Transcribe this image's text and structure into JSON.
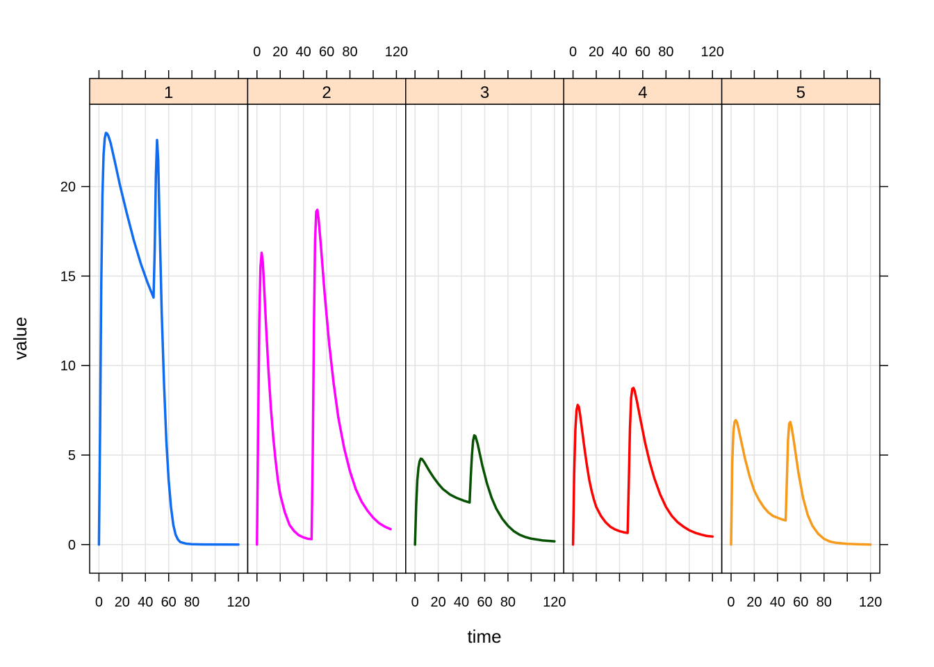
{
  "chart_data": {
    "type": "line",
    "layout": "lattice-panels",
    "xlabel": "time",
    "ylabel": "value",
    "xlim": [
      -8,
      128
    ],
    "ylim": [
      -1.6,
      24.6
    ],
    "x_ticks": [
      0,
      20,
      40,
      60,
      80,
      120
    ],
    "x_minor_ticks": [
      0,
      20,
      40,
      60,
      80,
      100,
      120
    ],
    "y_ticks": [
      0,
      5,
      10,
      15,
      20
    ],
    "grid": true,
    "strip_color": "#ffe0c4",
    "panels": [
      {
        "label": "1",
        "color": "#0f6cf0",
        "dose2_time": 48,
        "points": [
          [
            0,
            0
          ],
          [
            1,
            6.5
          ],
          [
            2,
            14.5
          ],
          [
            3,
            19.5
          ],
          [
            4,
            21.8
          ],
          [
            5,
            22.7
          ],
          [
            6,
            23.0
          ],
          [
            7,
            22.96
          ],
          [
            8,
            22.85
          ],
          [
            10,
            22.45
          ],
          [
            14,
            21.3
          ],
          [
            18,
            20.1
          ],
          [
            24,
            18.5
          ],
          [
            30,
            17.0
          ],
          [
            36,
            15.7
          ],
          [
            42,
            14.6
          ],
          [
            47,
            13.8
          ],
          [
            48,
            16.5
          ],
          [
            49,
            20.6
          ],
          [
            50,
            22.6
          ],
          [
            51,
            21.5
          ],
          [
            52,
            18.5
          ],
          [
            54,
            13.0
          ],
          [
            56,
            9.0
          ],
          [
            58,
            5.8
          ],
          [
            60,
            3.6
          ],
          [
            62,
            2.1
          ],
          [
            64,
            1.1
          ],
          [
            66,
            0.55
          ],
          [
            68,
            0.28
          ],
          [
            70,
            0.14
          ],
          [
            75,
            0.05
          ],
          [
            80,
            0.02
          ],
          [
            90,
            0.005
          ],
          [
            120,
            0.0
          ]
        ]
      },
      {
        "label": "2",
        "color": "#ff00ff",
        "dose2_time": 48,
        "points": [
          [
            0,
            0
          ],
          [
            1,
            6.5
          ],
          [
            2,
            12.5
          ],
          [
            3,
            15.5
          ],
          [
            4,
            16.3
          ],
          [
            5,
            15.8
          ],
          [
            6,
            14.6
          ],
          [
            8,
            12.0
          ],
          [
            10,
            9.6
          ],
          [
            12,
            7.6
          ],
          [
            14,
            6.0
          ],
          [
            16,
            4.7
          ],
          [
            18,
            3.6
          ],
          [
            20,
            2.8
          ],
          [
            24,
            1.8
          ],
          [
            28,
            1.1
          ],
          [
            32,
            0.75
          ],
          [
            36,
            0.52
          ],
          [
            40,
            0.4
          ],
          [
            44,
            0.32
          ],
          [
            47,
            0.3
          ],
          [
            48,
            5.0
          ],
          [
            49,
            12.0
          ],
          [
            50,
            17.0
          ],
          [
            51,
            18.6
          ],
          [
            52,
            18.7
          ],
          [
            53,
            18.2
          ],
          [
            55,
            16.7
          ],
          [
            58,
            14.2
          ],
          [
            62,
            11.3
          ],
          [
            66,
            9.0
          ],
          [
            70,
            7.1
          ],
          [
            75,
            5.4
          ],
          [
            80,
            4.1
          ],
          [
            85,
            3.1
          ],
          [
            90,
            2.4
          ],
          [
            95,
            1.9
          ],
          [
            100,
            1.5
          ],
          [
            105,
            1.2
          ],
          [
            110,
            1.0
          ],
          [
            115,
            0.86
          ]
        ]
      },
      {
        "label": "3",
        "color": "#075202",
        "dose2_time": 48,
        "points": [
          [
            0,
            0
          ],
          [
            1,
            2.2
          ],
          [
            2,
            3.6
          ],
          [
            3,
            4.3
          ],
          [
            4,
            4.65
          ],
          [
            5,
            4.8
          ],
          [
            6,
            4.78
          ],
          [
            8,
            4.6
          ],
          [
            12,
            4.15
          ],
          [
            16,
            3.75
          ],
          [
            20,
            3.4
          ],
          [
            24,
            3.1
          ],
          [
            30,
            2.8
          ],
          [
            36,
            2.6
          ],
          [
            42,
            2.45
          ],
          [
            47,
            2.35
          ],
          [
            48,
            3.8
          ],
          [
            49,
            5.0
          ],
          [
            50,
            5.8
          ],
          [
            51,
            6.1
          ],
          [
            52,
            6.05
          ],
          [
            54,
            5.6
          ],
          [
            56,
            5.0
          ],
          [
            58,
            4.4
          ],
          [
            62,
            3.4
          ],
          [
            66,
            2.6
          ],
          [
            70,
            2.0
          ],
          [
            75,
            1.45
          ],
          [
            80,
            1.05
          ],
          [
            85,
            0.75
          ],
          [
            90,
            0.55
          ],
          [
            95,
            0.42
          ],
          [
            100,
            0.33
          ],
          [
            110,
            0.23
          ],
          [
            120,
            0.18
          ]
        ]
      },
      {
        "label": "4",
        "color": "#ff0000",
        "dose2_time": 48,
        "points": [
          [
            0,
            0
          ],
          [
            1,
            4.0
          ],
          [
            2,
            6.4
          ],
          [
            3,
            7.5
          ],
          [
            4,
            7.8
          ],
          [
            5,
            7.7
          ],
          [
            6,
            7.3
          ],
          [
            8,
            6.3
          ],
          [
            10,
            5.3
          ],
          [
            12,
            4.4
          ],
          [
            14,
            3.6
          ],
          [
            16,
            3.0
          ],
          [
            18,
            2.5
          ],
          [
            20,
            2.1
          ],
          [
            24,
            1.6
          ],
          [
            28,
            1.25
          ],
          [
            32,
            1.0
          ],
          [
            36,
            0.85
          ],
          [
            40,
            0.75
          ],
          [
            44,
            0.68
          ],
          [
            47,
            0.65
          ],
          [
            48,
            3.5
          ],
          [
            49,
            6.5
          ],
          [
            50,
            8.2
          ],
          [
            51,
            8.7
          ],
          [
            52,
            8.75
          ],
          [
            53,
            8.6
          ],
          [
            55,
            8.0
          ],
          [
            58,
            7.0
          ],
          [
            62,
            5.7
          ],
          [
            66,
            4.6
          ],
          [
            70,
            3.7
          ],
          [
            75,
            2.8
          ],
          [
            80,
            2.1
          ],
          [
            85,
            1.6
          ],
          [
            90,
            1.25
          ],
          [
            95,
            1.0
          ],
          [
            100,
            0.8
          ],
          [
            105,
            0.66
          ],
          [
            110,
            0.56
          ],
          [
            115,
            0.48
          ],
          [
            120,
            0.45
          ]
        ]
      },
      {
        "label": "5",
        "color": "#f59a1a",
        "dose2_time": 48,
        "points": [
          [
            0,
            0
          ],
          [
            1,
            4.5
          ],
          [
            2,
            6.3
          ],
          [
            3,
            6.85
          ],
          [
            4,
            6.95
          ],
          [
            5,
            6.85
          ],
          [
            6,
            6.6
          ],
          [
            8,
            6.0
          ],
          [
            10,
            5.4
          ],
          [
            12,
            4.8
          ],
          [
            16,
            3.8
          ],
          [
            20,
            3.0
          ],
          [
            24,
            2.5
          ],
          [
            28,
            2.1
          ],
          [
            32,
            1.8
          ],
          [
            36,
            1.6
          ],
          [
            40,
            1.5
          ],
          [
            44,
            1.4
          ],
          [
            47,
            1.35
          ],
          [
            48,
            3.5
          ],
          [
            49,
            5.8
          ],
          [
            50,
            6.75
          ],
          [
            51,
            6.85
          ],
          [
            52,
            6.6
          ],
          [
            54,
            5.8
          ],
          [
            56,
            4.9
          ],
          [
            58,
            4.0
          ],
          [
            62,
            2.6
          ],
          [
            66,
            1.65
          ],
          [
            70,
            1.05
          ],
          [
            75,
            0.6
          ],
          [
            80,
            0.32
          ],
          [
            85,
            0.17
          ],
          [
            90,
            0.1
          ],
          [
            100,
            0.04
          ],
          [
            110,
            0.015
          ],
          [
            120,
            0.0
          ]
        ]
      }
    ]
  }
}
